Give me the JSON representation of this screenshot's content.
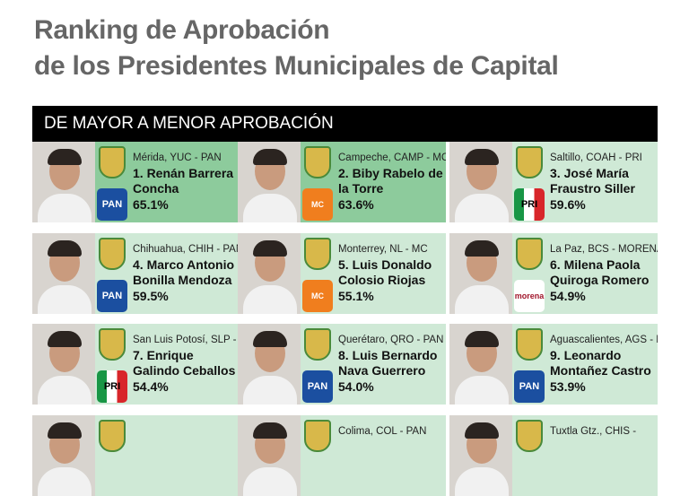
{
  "header": {
    "title_line1": "Ranking de Aprobación",
    "title_line2": "de los Presidentes Municipales de Capital"
  },
  "section_label": "DE MAYOR A MENOR APROBACIÓN",
  "colors": {
    "top_card": "#8dcb9c",
    "card": "#cfe9d6",
    "bar": "#000000",
    "PAN": "#1b4fa0",
    "MC": "#f07e1e",
    "MORENA": "#a0152a"
  },
  "mayors": [
    {
      "location": "Mérida, YUC - PAN",
      "name": "1. Renán Barrera Concha",
      "approval": "65.1%",
      "party": "PAN",
      "party_label": "PAN"
    },
    {
      "location": "Campeche, CAMP - MC",
      "name": "2. Biby Rabelo de la Torre",
      "approval": "63.6%",
      "party": "MC",
      "party_label": "MC"
    },
    {
      "location": "Saltillo, COAH - PRI",
      "name": "3. José María Fraustro Siller",
      "approval": "59.6%",
      "party": "PRI",
      "party_label": "PRI"
    },
    {
      "location": "Chihuahua, CHIH - PAN",
      "name": "4. Marco Antonio Bonilla Mendoza",
      "approval": "59.5%",
      "party": "PAN",
      "party_label": "PAN"
    },
    {
      "location": "Monterrey, NL - MC",
      "name": "5. Luis Donaldo Colosio Riojas",
      "approval": "55.1%",
      "party": "MC",
      "party_label": "MC"
    },
    {
      "location": "La Paz, BCS - MORENA",
      "name": "6. Milena Paola Quiroga Romero",
      "approval": "54.9%",
      "party": "MORENA",
      "party_label": "morena"
    },
    {
      "location": "San Luis Potosí, SLP - PRI",
      "name": "7. Enrique Galindo Ceballos",
      "approval": "54.4%",
      "party": "PRI",
      "party_label": "PRI"
    },
    {
      "location": "Querétaro, QRO - PAN",
      "name": "8. Luis Bernardo Nava Guerrero",
      "approval": "54.0%",
      "party": "PAN",
      "party_label": "PAN"
    },
    {
      "location": "Aguascalientes, AGS - PAN",
      "name": "9. Leonardo Montañez Castro",
      "approval": "53.9%",
      "party": "PAN",
      "party_label": "PAN"
    },
    {
      "location": "",
      "name": "",
      "approval": "",
      "party": "",
      "party_label": ""
    },
    {
      "location": "Colima, COL - PAN",
      "name": "",
      "approval": "",
      "party": "",
      "party_label": ""
    },
    {
      "location": "Tuxtla Gtz., CHIS -",
      "name": "",
      "approval": "",
      "party": "",
      "party_label": ""
    }
  ]
}
